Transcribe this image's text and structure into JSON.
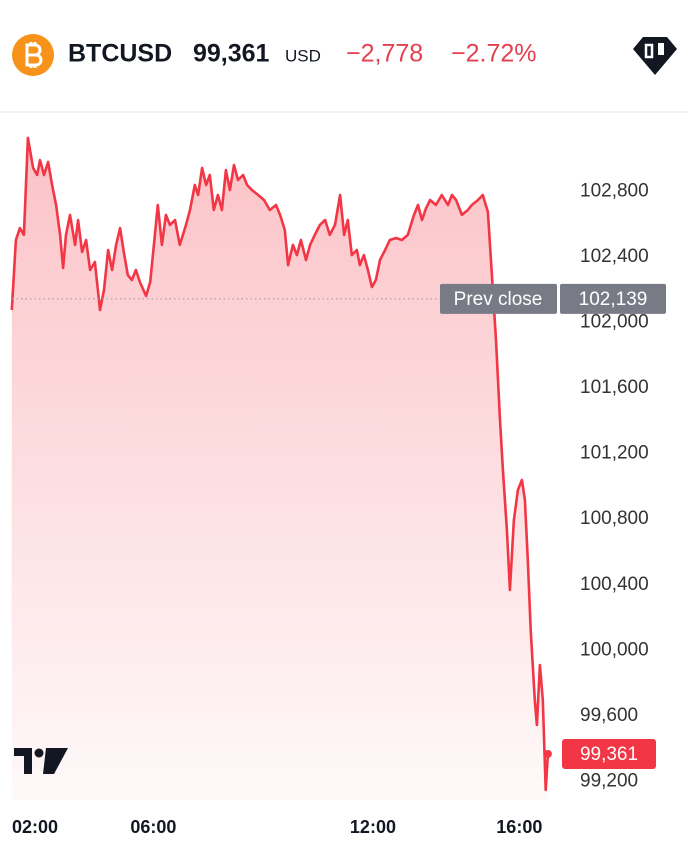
{
  "header": {
    "symbol": "BTCUSD",
    "price": "99,361",
    "currency": "USD",
    "change": "−2,778",
    "change_percent": "−2.72%"
  },
  "chart_data": {
    "type": "line",
    "x": [
      2.05,
      2.16,
      2.27,
      2.38,
      2.49,
      2.63,
      2.74,
      2.82,
      2.93,
      3.04,
      3.15,
      3.26,
      3.37,
      3.45,
      3.53,
      3.64,
      3.78,
      3.86,
      3.97,
      4.08,
      4.19,
      4.32,
      4.46,
      4.57,
      4.68,
      4.79,
      4.9,
      5.01,
      5.11,
      5.22,
      5.33,
      5.44,
      5.55,
      5.72,
      5.83,
      5.96,
      6.04,
      6.15,
      6.26,
      6.37,
      6.51,
      6.64,
      6.81,
      6.92,
      7.05,
      7.14,
      7.25,
      7.36,
      7.46,
      7.57,
      7.68,
      7.79,
      7.9,
      8.01,
      8.12,
      8.23,
      8.37,
      8.48,
      8.61,
      8.78,
      8.94,
      9.1,
      9.27,
      9.38,
      9.51,
      9.6,
      9.73,
      9.84,
      9.95,
      10.09,
      10.2,
      10.33,
      10.47,
      10.61,
      10.74,
      10.88,
      11.02,
      11.13,
      11.23,
      11.34,
      11.48,
      11.56,
      11.67,
      11.78,
      11.89,
      12.0,
      12.11,
      12.25,
      12.38,
      12.55,
      12.71,
      12.87,
      13.04,
      13.15,
      13.26,
      13.37,
      13.48,
      13.64,
      13.8,
      13.97,
      14.08,
      14.19,
      14.35,
      14.51,
      14.62,
      14.79,
      14.92,
      15.06,
      15.17,
      15.28,
      15.39,
      15.47,
      15.58,
      15.66,
      15.77,
      15.88,
      15.99,
      16.07,
      16.15,
      16.23,
      16.34,
      16.4,
      16.48,
      16.56,
      16.64,
      16.7
    ],
    "series": [
      {
        "name": "BTCUSD",
        "color": "#f23645",
        "values": [
          102071,
          102498,
          102571,
          102529,
          103121,
          102938,
          102895,
          102986,
          102895,
          102974,
          102834,
          102712,
          102529,
          102327,
          102529,
          102651,
          102468,
          102620,
          102425,
          102498,
          102315,
          102364,
          102071,
          102193,
          102437,
          102315,
          102468,
          102571,
          102425,
          102284,
          102254,
          102315,
          102242,
          102156,
          102242,
          102529,
          102712,
          102468,
          102651,
          102590,
          102620,
          102468,
          102590,
          102681,
          102834,
          102773,
          102938,
          102834,
          102895,
          102681,
          102773,
          102681,
          102925,
          102803,
          102956,
          102864,
          102895,
          102834,
          102803,
          102773,
          102742,
          102681,
          102712,
          102651,
          102559,
          102345,
          102468,
          102406,
          102498,
          102376,
          102468,
          102529,
          102590,
          102620,
          102529,
          102590,
          102773,
          102529,
          102620,
          102406,
          102437,
          102345,
          102406,
          102315,
          102211,
          102254,
          102376,
          102437,
          102498,
          102510,
          102498,
          102529,
          102651,
          102712,
          102620,
          102693,
          102742,
          102712,
          102773,
          102712,
          102773,
          102742,
          102651,
          102681,
          102712,
          102742,
          102773,
          102669,
          102284,
          101888,
          101399,
          101094,
          100728,
          100362,
          100789,
          100972,
          101033,
          100911,
          100545,
          100117,
          99690,
          99538,
          99904,
          99690,
          99141,
          99361
        ]
      }
    ],
    "xlim": [
      2,
      17.03
    ],
    "xticks": [
      {
        "value": 2,
        "label": "02:00"
      },
      {
        "value": 6,
        "label": "06:00"
      },
      {
        "value": 12,
        "label": "12:00"
      },
      {
        "value": 16,
        "label": "16:00"
      }
    ],
    "ylim": [
      99080,
      103200
    ],
    "yticks": [
      {
        "value": 99200,
        "label": "99,200"
      },
      {
        "value": 99600,
        "label": "99,600"
      },
      {
        "value": 100000,
        "label": "100,000"
      },
      {
        "value": 100400,
        "label": "100,400"
      },
      {
        "value": 100800,
        "label": "100,800"
      },
      {
        "value": 101200,
        "label": "101,200"
      },
      {
        "value": 101600,
        "label": "101,600"
      },
      {
        "value": 102000,
        "label": "102,000"
      },
      {
        "value": 102400,
        "label": "102,400"
      },
      {
        "value": 102800,
        "label": "102,800"
      }
    ],
    "annotations": [
      {
        "text": "Prev close",
        "value": 102139,
        "label": "102,139"
      }
    ],
    "grid": false
  }
}
